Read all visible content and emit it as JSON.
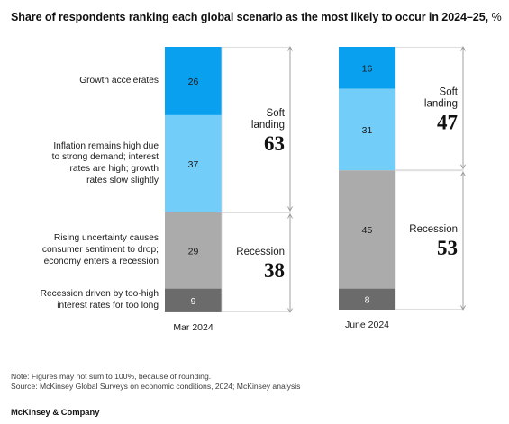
{
  "chart_data": {
    "type": "bar",
    "stacked": true,
    "title": "Share of respondents ranking each global scenario as the most likely to occur in 2024–25,",
    "unit": "%",
    "categories": [
      "Mar 2024",
      "June 2024"
    ],
    "series": [
      {
        "name": "Growth accelerates",
        "values": [
          26,
          16
        ],
        "color": "#0aa0f0"
      },
      {
        "name": "Inflation remains high due to strong demand; interest rates are high; growth rates slow slightly",
        "values": [
          37,
          31
        ],
        "color": "#72cdf8"
      },
      {
        "name": "Rising uncertainty causes consumer sentiment to drop; economy enters a recession",
        "values": [
          29,
          45
        ],
        "color": "#ababab"
      },
      {
        "name": "Recession driven by too-high interest rates for too long",
        "values": [
          9,
          8
        ],
        "color": "#6b6b6b"
      }
    ],
    "series_labels": [
      [
        "Growth accelerates"
      ],
      [
        "Inflation remains high due",
        "to strong demand; interest",
        "rates are high; growth",
        "rates slow slightly"
      ],
      [
        "Rising uncertainty causes",
        "consumer sentiment to drop;",
        "economy enters a recession"
      ],
      [
        "Recession driven by too-high",
        "interest rates for too long"
      ]
    ],
    "groups": [
      {
        "label": [
          "Soft",
          "landing"
        ],
        "series": [
          0,
          1
        ],
        "totals": [
          63,
          47
        ]
      },
      {
        "label": [
          "Recession"
        ],
        "series": [
          2,
          3
        ],
        "totals": [
          38,
          53
        ]
      }
    ]
  },
  "footnote": "Note: Figures may not sum to 100%, because of rounding.",
  "source": "Source: McKinsey Global Surveys on economic conditions, 2024; McKinsey analysis",
  "brand": "McKinsey & Company"
}
